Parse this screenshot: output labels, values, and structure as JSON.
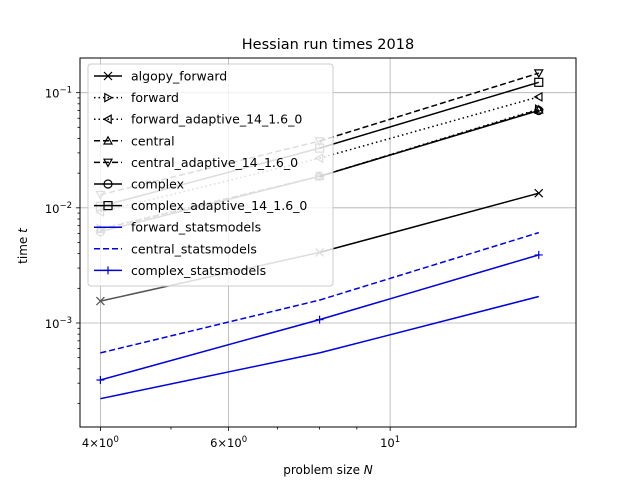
{
  "chart_data": {
    "type": "line",
    "title": "Hessian run times 2018",
    "xlabel": "problem size N",
    "ylabel": "time t",
    "x_scale": "log",
    "y_scale": "log",
    "xlim": [
      3.75,
      18.0
    ],
    "ylim": [
      0.000125,
      0.2
    ],
    "grid": true,
    "legend_position": "top-left",
    "x_ticks": [
      {
        "value": 4,
        "base": "4×10",
        "exp": "0"
      },
      {
        "value": 6,
        "base": "6×10",
        "exp": "0"
      },
      {
        "value": 10,
        "base": "10",
        "exp": "1"
      }
    ],
    "y_ticks": [
      {
        "value": 0.001,
        "base": "10",
        "exp": "−3"
      },
      {
        "value": 0.01,
        "base": "10",
        "exp": "−2"
      },
      {
        "value": 0.1,
        "base": "10",
        "exp": "−1"
      }
    ],
    "x": [
      4,
      8,
      16
    ],
    "series": [
      {
        "name": "algopy_forward",
        "color": "#000000",
        "color_secondary": "#555555",
        "dash": "solid",
        "marker": "x",
        "values": [
          0.00155,
          0.0041,
          0.0134
        ]
      },
      {
        "name": "forward",
        "color": "#000000",
        "color_secondary": "#555555",
        "dash": "dotted",
        "marker": "triangle-right",
        "values": [
          0.0066,
          0.0188,
          0.072
        ]
      },
      {
        "name": "forward_adaptive_14_1.6_0",
        "color": "#000000",
        "color_secondary": "#555555",
        "dash": "dotted",
        "marker": "triangle-left",
        "values": [
          0.0092,
          0.027,
          0.092
        ]
      },
      {
        "name": "central",
        "color": "#000000",
        "color_secondary": "#555555",
        "dash": "dashed",
        "marker": "triangle-up",
        "values": [
          0.0065,
          0.0188,
          0.071
        ]
      },
      {
        "name": "central_adaptive_14_1.6_0",
        "color": "#000000",
        "color_secondary": "#555555",
        "dash": "dashed",
        "marker": "triangle-down",
        "values": [
          0.013,
          0.038,
          0.148
        ]
      },
      {
        "name": "complex",
        "color": "#000000",
        "color_secondary": "#555555",
        "dash": "solid",
        "marker": "circle",
        "values": [
          0.0062,
          0.0188,
          0.07
        ]
      },
      {
        "name": "complex_adaptive_14_1.6_0",
        "color": "#000000",
        "color_secondary": "#555555",
        "dash": "solid",
        "marker": "square",
        "values": [
          0.0103,
          0.033,
          0.123
        ]
      },
      {
        "name": "forward_statsmodels",
        "color": "#0000dd",
        "color_secondary": "#0000dd",
        "dash": "solid",
        "marker": "none",
        "values": [
          0.00022,
          0.00055,
          0.0017
        ]
      },
      {
        "name": "central_statsmodels",
        "color": "#0000dd",
        "color_secondary": "#0000dd",
        "dash": "dashed",
        "marker": "none",
        "values": [
          0.00055,
          0.00158,
          0.0061
        ]
      },
      {
        "name": "complex_statsmodels",
        "color": "#0000dd",
        "color_secondary": "#0000dd",
        "dash": "solid",
        "marker": "plus",
        "values": [
          0.00032,
          0.00107,
          0.0039
        ]
      }
    ]
  }
}
